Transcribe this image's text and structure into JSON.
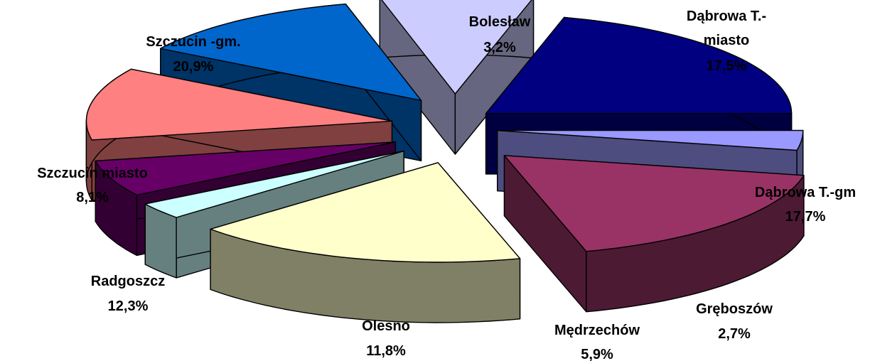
{
  "chart_data": {
    "type": "pie",
    "variant": "3d-exploded",
    "title": "",
    "slices": [
      {
        "name": "Bolesław",
        "value": 3.2,
        "value_label": "3,2%",
        "top_color": "#9999ff",
        "side_color": "#4d4d80"
      },
      {
        "name": "Dąbrowa T.- miasto",
        "value": 17.5,
        "value_label": "17,5%",
        "top_color": "#993366",
        "side_color": "#4d1a33"
      },
      {
        "name": "Dąbrowa T.-gm",
        "value": 17.7,
        "value_label": "17,7%",
        "top_color": "#ffffcc",
        "side_color": "#808066"
      },
      {
        "name": "Gręboszów",
        "value": 2.7,
        "value_label": "2,7%",
        "top_color": "#ccffff",
        "side_color": "#668080"
      },
      {
        "name": "Mędrzechów",
        "value": 5.9,
        "value_label": "5,9%",
        "top_color": "#660066",
        "side_color": "#330033"
      },
      {
        "name": "Olesno",
        "value": 11.8,
        "value_label": "11,8%",
        "top_color": "#ff8080",
        "side_color": "#804040"
      },
      {
        "name": "Radgoszcz",
        "value": 12.3,
        "value_label": "12,3%",
        "top_color": "#0066cc",
        "side_color": "#003366"
      },
      {
        "name": "Szczucin miasto",
        "value": 8.1,
        "value_label": "8,1%",
        "top_color": "#ccccff",
        "side_color": "#666680"
      },
      {
        "name": "Szczucin -gm.",
        "value": 20.9,
        "value_label": "20,9%",
        "top_color": "#000080",
        "side_color": "#000040"
      }
    ]
  }
}
